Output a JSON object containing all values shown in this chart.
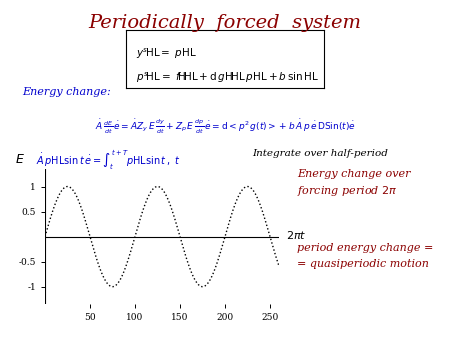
{
  "title": "Periodically  forced  system",
  "title_color": "#8B0000",
  "title_fontsize": 14,
  "bg_color": "#ffffff",
  "box_line1": "$y^s\\!\\mathrm{HL}=\\ p\\mathrm{HL}$",
  "box_line2": "$p^s\\!\\mathrm{HL}=\\ f\\!\\mathrm{H}\\!\\mathrm{HL}+ \\mathrm{d}\\,g\\mathrm{H}\\!\\mathrm{HL}\\,p\\mathrm{HL}+ b\\sin\\mathrm{HL}$",
  "energy_change_label": "Energy change:",
  "eq1": "$\\dot{A}\\,\\frac{dE}{dt}\\,\\dot{e} = \\dot{A}Z_y\\,E\\,\\frac{dy}{dt} + Z_p\\,E\\,\\frac{dp}{dt}\\,\\dot{e} = \\mathrm{d}{<}p^2\\,g(t){>} + b\\,\\dot{A}\\,p\\,\\dot{e}\\,\\mathrm{DSin}(t)\\dot{e}$",
  "eq2": "$\\dot{A}\\,p\\mathrm{HL}\\sin t\\,\\dot{e} = \\int_t^{t+T} p\\mathrm{HL}\\sin t\\,,\\ t$",
  "integrate_label": "Integrate over half-period",
  "plot_xlabel": "$2\\pi t$",
  "plot_ylabel": "$E$",
  "plot_xticks": [
    50,
    100,
    150,
    200,
    250
  ],
  "plot_yticks": [
    -1,
    -0.5,
    0.5,
    1
  ],
  "plot_ytick_labels": [
    "-1",
    "-0.5",
    "0.5",
    "1"
  ],
  "plot_xlim": [
    0,
    260
  ],
  "plot_ylim": [
    -1.35,
    1.35
  ],
  "energy_change_over_text1": "Energy change over",
  "energy_change_over_text2": "forcing period $2\\pi$",
  "period_energy_text1": "period energy change =",
  "period_energy_text2": "= quasiperiodic motion",
  "annotation_color": "#8B0000",
  "plot_color": "#000000",
  "blue_color": "#0000CD"
}
